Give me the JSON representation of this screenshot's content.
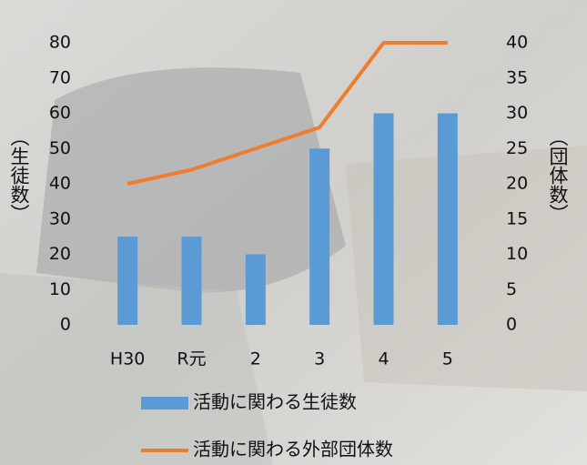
{
  "chart_data": {
    "type": "bar",
    "categories": [
      "H30",
      "R元",
      "2",
      "3",
      "4",
      "5"
    ],
    "series": [
      {
        "name": "活動に関わる生徒数",
        "color": "#5b9bd5",
        "values": [
          25,
          25,
          20,
          50,
          60,
          60
        ]
      },
      {
        "name": "活動に関わる外部団体数",
        "color": "#ed7d31",
        "type": "line",
        "axis": "y2",
        "values": [
          20,
          22,
          25,
          28,
          40,
          40
        ]
      }
    ],
    "ylabel": "（生徒数）",
    "y2label": "（団体数）",
    "ylim": [
      0,
      80
    ],
    "yticks": [
      0,
      10,
      20,
      30,
      40,
      50,
      60,
      70,
      80
    ],
    "y2lim": [
      0,
      40
    ],
    "y2ticks": [
      0,
      5,
      10,
      15,
      20,
      25,
      30,
      35,
      40
    ],
    "grid": false
  }
}
